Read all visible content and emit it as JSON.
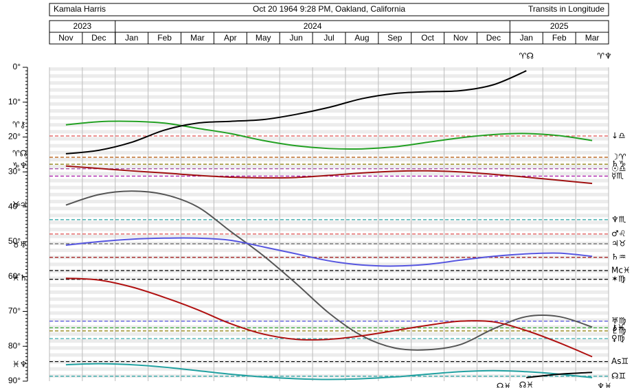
{
  "header": {
    "name": "Kamala Harris",
    "birth": "Oct 20 1964 9:28 PM, Oakland, California",
    "mode": "Transits in Longitude"
  },
  "chart_data": {
    "type": "line",
    "years": [
      {
        "label": "2023",
        "months": [
          "Nov",
          "Dec"
        ]
      },
      {
        "label": "2024",
        "months": [
          "Jan",
          "Feb",
          "Mar",
          "Apr",
          "May",
          "Jun",
          "Jul",
          "Aug",
          "Sep",
          "Oct",
          "Nov",
          "Dec"
        ]
      },
      {
        "label": "2025",
        "months": [
          "Jan",
          "Feb",
          "Mar"
        ]
      }
    ],
    "ylim": [
      0,
      90
    ],
    "yticks": [
      {
        "value": 0,
        "label": "0°"
      },
      {
        "value": 10,
        "label": "10°"
      },
      {
        "value": 20,
        "label": "20°"
      },
      {
        "value": 30,
        "label": "30°"
      },
      {
        "value": 40,
        "label": "40°"
      },
      {
        "value": 50,
        "label": "50°"
      },
      {
        "value": 60,
        "label": "60°"
      },
      {
        "value": 70,
        "label": "70°"
      },
      {
        "value": 80,
        "label": "80°"
      },
      {
        "value": 90,
        "label": "90°"
      }
    ],
    "inverted": true,
    "grid": true,
    "series": [
      {
        "name": "♈⚷",
        "color": "#22a022",
        "values": [
          16.5,
          15.6,
          15.5,
          16,
          17.5,
          19,
          21,
          22.5,
          23.3,
          23.4,
          22.8,
          21.5,
          20.2,
          19.3,
          19,
          19.6,
          21
        ]
      },
      {
        "name": "♈☊",
        "color": "#000000",
        "values": [
          24.8,
          23.8,
          21.5,
          18,
          16,
          15.5,
          15,
          13.5,
          11.5,
          9,
          7.5,
          7,
          6.7,
          5,
          1,
          null,
          null
        ]
      },
      {
        "name": "♑♆",
        "color": "#a01010",
        "values": [
          28.3,
          29,
          29.7,
          30.3,
          31,
          31.5,
          31.7,
          31.6,
          31,
          30.3,
          29.8,
          29.7,
          30,
          30.7,
          31.5,
          32.4,
          33.3
        ]
      },
      {
        "name": "♉♃",
        "color": "#555555",
        "values": [
          39.5,
          36.5,
          35.5,
          36.5,
          40,
          47,
          54,
          62,
          70.5,
          77,
          80.5,
          81,
          79.5,
          75,
          71.5,
          71.5,
          74.5
        ]
      },
      {
        "name": "♉♅",
        "color": "#5555e0",
        "values": [
          51,
          50,
          49.3,
          49,
          49,
          49.6,
          51.5,
          53.5,
          55.5,
          56.7,
          57,
          56.5,
          55.3,
          54.2,
          53.5,
          53.3,
          54.2
        ]
      },
      {
        "name": "♓♄",
        "color": "#b01010",
        "values": [
          60.5,
          61,
          63,
          66,
          69.5,
          73.5,
          76.5,
          78,
          78,
          77,
          75.5,
          74,
          72.8,
          73,
          75.5,
          79,
          83
        ]
      },
      {
        "name": "♓♆",
        "color": "#20a0a0",
        "values": [
          85.3,
          85,
          85.3,
          86,
          87,
          88,
          88.8,
          89.3,
          89.5,
          89.3,
          88.8,
          88,
          87.3,
          87,
          87.3,
          88,
          89
        ]
      },
      {
        "name": "☊♓",
        "color": "#000000",
        "values": [
          null,
          null,
          null,
          null,
          null,
          null,
          null,
          null,
          null,
          null,
          null,
          null,
          null,
          null,
          89,
          88,
          87.5
        ]
      }
    ],
    "natal": [
      {
        "label": "↓♎",
        "value": 19.7,
        "color": "#e05050"
      },
      {
        "label": "☽♈",
        "value": 25.8,
        "color": "#b05000"
      },
      {
        "label": "♄♑",
        "value": 27.8,
        "color": "#8a7a00"
      },
      {
        "label": "☉♎",
        "value": 29.1,
        "color": "#a040a0"
      },
      {
        "label": "☿♏",
        "value": 31.2,
        "color": "#a000a0"
      },
      {
        "label": "♆♏",
        "value": 43.7,
        "color": "#20a0a0"
      },
      {
        "label": "♂♌",
        "value": 47.8,
        "color": "#e05050"
      },
      {
        "label": "♃♉",
        "value": 50.6,
        "color": "#555555"
      },
      {
        "label": "♄♒",
        "value": 54.5,
        "color": "#a01010"
      },
      {
        "label": "Mc♓",
        "value": 58.3,
        "color": "#000000"
      },
      {
        "label": "✶♍",
        "value": 60.8,
        "color": "#000000"
      },
      {
        "label": "♅♍",
        "value": 72.8,
        "color": "#5555e0"
      },
      {
        "label": "⚷♓",
        "value": 74.7,
        "color": "#22a022"
      },
      {
        "label": "♇♍",
        "value": 75.6,
        "color": "#8a7a00"
      },
      {
        "label": "♀♍",
        "value": 77.8,
        "color": "#20a0a0"
      },
      {
        "label": "As♊",
        "value": 84.4,
        "color": "#000000"
      },
      {
        "label": "☊♊",
        "value": 88.6,
        "color": "#20a0a0"
      }
    ],
    "top_labels": [
      "♈☊",
      "♈♆"
    ],
    "bottom_labels": [
      "☊♓",
      "♆♓"
    ]
  }
}
